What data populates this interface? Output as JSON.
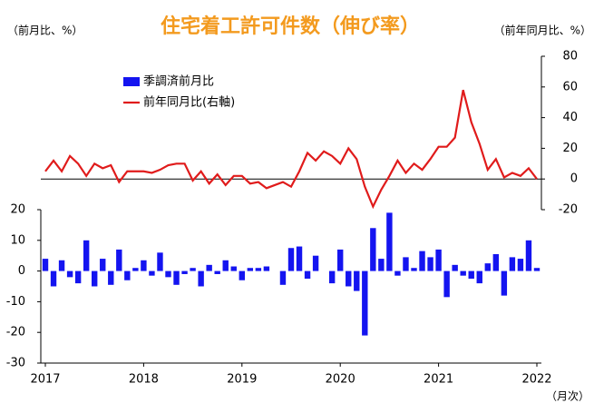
{
  "chart_data": {
    "type": "bar-line",
    "title": "住宅着工許可件数（伸び率）",
    "y_label": "（前月比、%）",
    "y2_label": "（前年同月比、%）",
    "x_label": "（月次）",
    "categories": [
      "2017",
      null,
      null,
      null,
      null,
      null,
      null,
      null,
      null,
      null,
      null,
      null,
      "2018",
      null,
      null,
      null,
      null,
      null,
      null,
      null,
      null,
      null,
      null,
      null,
      "2019",
      null,
      null,
      null,
      null,
      null,
      null,
      null,
      null,
      null,
      null,
      null,
      "2020",
      null,
      null,
      null,
      null,
      null,
      null,
      null,
      null,
      null,
      null,
      null,
      "2021",
      null,
      null,
      null,
      null,
      null,
      null,
      null,
      null,
      null,
      null,
      null,
      "2022"
    ],
    "series": [
      {
        "name": "季調済前月比",
        "color": "#1414f0",
        "axis": "y",
        "values": [
          4,
          -5,
          3.5,
          -2,
          -4,
          10,
          -5,
          4,
          -4.5,
          7,
          -3,
          1,
          3.5,
          -1.5,
          6,
          -2,
          -4.5,
          -1,
          1,
          -5,
          2,
          -1,
          3.5,
          1.5,
          -3,
          1,
          1,
          1.5,
          0,
          -4.5,
          7.5,
          8,
          -2.5,
          5,
          0,
          -4,
          7,
          -5,
          -6.5,
          -21,
          14,
          4,
          19,
          -1.5,
          4.5,
          1,
          6.5,
          4.5,
          7,
          -8.5,
          2,
          -1.5,
          -2.5,
          -4,
          2.5,
          5.5,
          -8,
          4.5,
          4,
          10,
          1
        ]
      },
      {
        "name": "前年同月比(右軸)",
        "color": "#e01b1b",
        "axis": "y2",
        "values": [
          5,
          12,
          5,
          15,
          10,
          2,
          10,
          7,
          9,
          -2,
          5,
          5,
          5,
          4,
          6,
          9,
          10,
          10,
          -1,
          5,
          -3,
          3,
          -4,
          2,
          2,
          -3,
          -2,
          -6,
          -4,
          -2,
          -5,
          5,
          17,
          12,
          18,
          15,
          10,
          20,
          13,
          -5,
          -18,
          -7,
          2,
          12,
          4,
          10,
          6,
          13,
          21,
          21,
          27,
          58,
          37,
          23,
          6,
          13,
          1,
          4,
          2,
          7,
          0
        ]
      }
    ],
    "ylim": [
      -30,
      70
    ],
    "yticks": [
      -30,
      -20,
      -10,
      0,
      10,
      20
    ],
    "y2lim": [
      -120,
      80
    ],
    "y2ticks": [
      -20,
      0,
      20,
      40,
      60,
      80
    ]
  }
}
